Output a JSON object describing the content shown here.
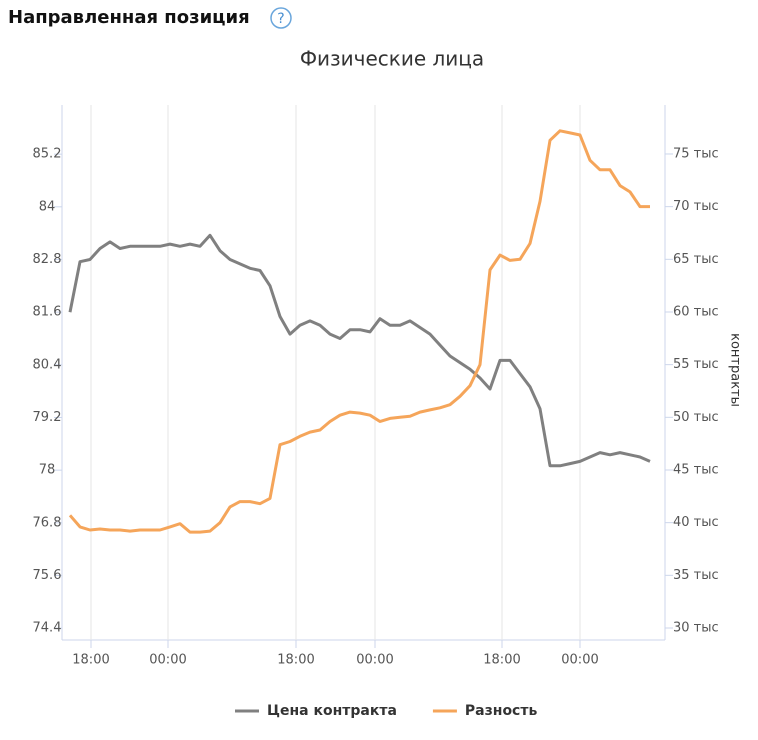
{
  "header": {
    "title": "Направленная позиция",
    "help": "?"
  },
  "chart_data": {
    "type": "line",
    "title": "Физические лица",
    "x": [
      8,
      18,
      28,
      38,
      48,
      58,
      68,
      78,
      88,
      98,
      108,
      118,
      128,
      138,
      148,
      158,
      168,
      178,
      188,
      198,
      208,
      218,
      228,
      238,
      248,
      258,
      268,
      278,
      288,
      298,
      308,
      318,
      328,
      338,
      348,
      358,
      368,
      378,
      388,
      398,
      408,
      418,
      428,
      438,
      448,
      458,
      468,
      478,
      488,
      498,
      508,
      518,
      528,
      538,
      548,
      558,
      568,
      578,
      588
    ],
    "xlim": [
      0,
      603
    ],
    "xticks": [
      {
        "value": 29,
        "label": "18:00"
      },
      {
        "value": 106,
        "label": "00:00"
      },
      {
        "value": 234,
        "label": "18:00"
      },
      {
        "value": 313,
        "label": "00:00"
      },
      {
        "value": 440,
        "label": "18:00"
      },
      {
        "value": 518,
        "label": "00:00"
      }
    ],
    "ylim": [
      74.13,
      86.32
    ],
    "yticks": [
      74.4,
      75.6,
      76.8,
      78,
      79.2,
      80.4,
      81.6,
      82.8,
      84,
      85.2
    ],
    "y2label": "контракты",
    "y2lim": [
      28860,
      79650
    ],
    "y2ticks": [
      {
        "value": 30000,
        "label": "30 тыс"
      },
      {
        "value": 35000,
        "label": "35 тыс"
      },
      {
        "value": 40000,
        "label": "40 тыс"
      },
      {
        "value": 45000,
        "label": "45 тыс"
      },
      {
        "value": 50000,
        "label": "50 тыс"
      },
      {
        "value": 55000,
        "label": "55 тыс"
      },
      {
        "value": 60000,
        "label": "60 тыс"
      },
      {
        "value": 65000,
        "label": "65 тыс"
      },
      {
        "value": 70000,
        "label": "70 тыс"
      },
      {
        "value": 75000,
        "label": "75 тыс"
      }
    ],
    "grid": "x",
    "legend": "bottom",
    "series": [
      {
        "name": "Цена контракта",
        "color": "#808080",
        "axis": "y",
        "values": [
          81.6,
          82.75,
          82.8,
          83.05,
          83.2,
          83.05,
          83.1,
          83.1,
          83.1,
          83.1,
          83.15,
          83.1,
          83.15,
          83.1,
          83.35,
          83.0,
          82.8,
          82.7,
          82.6,
          82.55,
          82.2,
          81.5,
          81.1,
          81.3,
          81.4,
          81.3,
          81.1,
          81.0,
          81.2,
          81.2,
          81.15,
          81.45,
          81.3,
          81.3,
          81.4,
          81.25,
          81.1,
          80.85,
          80.6,
          80.45,
          80.3,
          80.1,
          79.85,
          80.5,
          80.5,
          80.2,
          79.9,
          79.4,
          78.1,
          78.1,
          78.15,
          78.2,
          78.3,
          78.4,
          78.35,
          78.4,
          78.35,
          78.3,
          78.2
        ]
      },
      {
        "name": "Разность",
        "color": "#f5a55a",
        "axis": "y2",
        "values": [
          40700,
          39600,
          39300,
          39400,
          39300,
          39300,
          39200,
          39300,
          39300,
          39300,
          39600,
          39900,
          39100,
          39100,
          39200,
          40000,
          41500,
          42000,
          42000,
          41800,
          42300,
          47400,
          47700,
          48200,
          48600,
          48800,
          49600,
          50200,
          50500,
          50400,
          50200,
          49600,
          49900,
          50000,
          50100,
          50500,
          50700,
          50900,
          51200,
          52000,
          53000,
          55000,
          64000,
          65400,
          64900,
          65000,
          66500,
          70500,
          76300,
          77200,
          77000,
          76800,
          74400,
          73500,
          73500,
          72000,
          71400,
          70000,
          70000
        ]
      }
    ]
  }
}
